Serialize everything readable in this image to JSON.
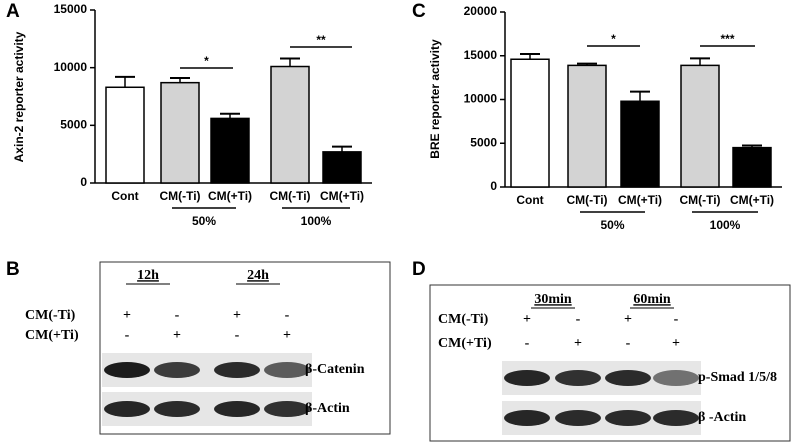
{
  "chart_data": [
    {
      "type": "bar",
      "panel": "A",
      "ylabel": "Axin-2 reporter activity",
      "categories": [
        "Cont",
        "CM(-Ti)",
        "CM(+Ti)",
        "CM(-Ti)",
        "CM(+Ti)"
      ],
      "values": [
        8300,
        8700,
        5600,
        10100,
        2700
      ],
      "errors": [
        900,
        400,
        400,
        700,
        450
      ],
      "colors": [
        "#ffffff",
        "#d3d3d3",
        "#000000",
        "#d3d3d3",
        "#000000"
      ],
      "ylim": [
        0,
        15000
      ],
      "yticks": [
        0,
        5000,
        10000,
        15000
      ],
      "groups": [
        "50%",
        "100%"
      ],
      "annotations": [
        "*",
        "**"
      ]
    },
    {
      "type": "bar",
      "panel": "C",
      "ylabel": "BRE reporter activity",
      "categories": [
        "Cont",
        "CM(-Ti)",
        "CM(+Ti)",
        "CM(-Ti)",
        "CM(+Ti)"
      ],
      "values": [
        14600,
        13900,
        9800,
        13900,
        4500
      ],
      "errors": [
        600,
        200,
        1100,
        800,
        250
      ],
      "colors": [
        "#ffffff",
        "#d3d3d3",
        "#000000",
        "#d3d3d3",
        "#000000"
      ],
      "ylim": [
        0,
        20000
      ],
      "yticks": [
        0,
        5000,
        10000,
        15000,
        20000
      ],
      "groups": [
        "50%",
        "100%"
      ],
      "annotations": [
        "*",
        "***"
      ]
    }
  ],
  "blots": [
    {
      "panel": "B",
      "times": [
        "12h",
        "24h"
      ],
      "rows": [
        {
          "label": "CM(-Ti)",
          "signs": [
            "+",
            "-",
            "+",
            "-"
          ]
        },
        {
          "label": "CM(+Ti)",
          "signs": [
            "-",
            "+",
            "-",
            "+"
          ]
        }
      ],
      "bands": [
        "β-Catenin",
        "β-Actin"
      ]
    },
    {
      "panel": "D",
      "times": [
        "30min",
        "60min"
      ],
      "rows": [
        {
          "label": "CM(-Ti)",
          "signs": [
            "+",
            "-",
            "+",
            "-"
          ]
        },
        {
          "label": "CM(+Ti)",
          "signs": [
            "-",
            "+",
            "-",
            "+"
          ]
        }
      ],
      "bands": [
        "p-Smad 1/5/8",
        "β -Actin"
      ]
    }
  ]
}
